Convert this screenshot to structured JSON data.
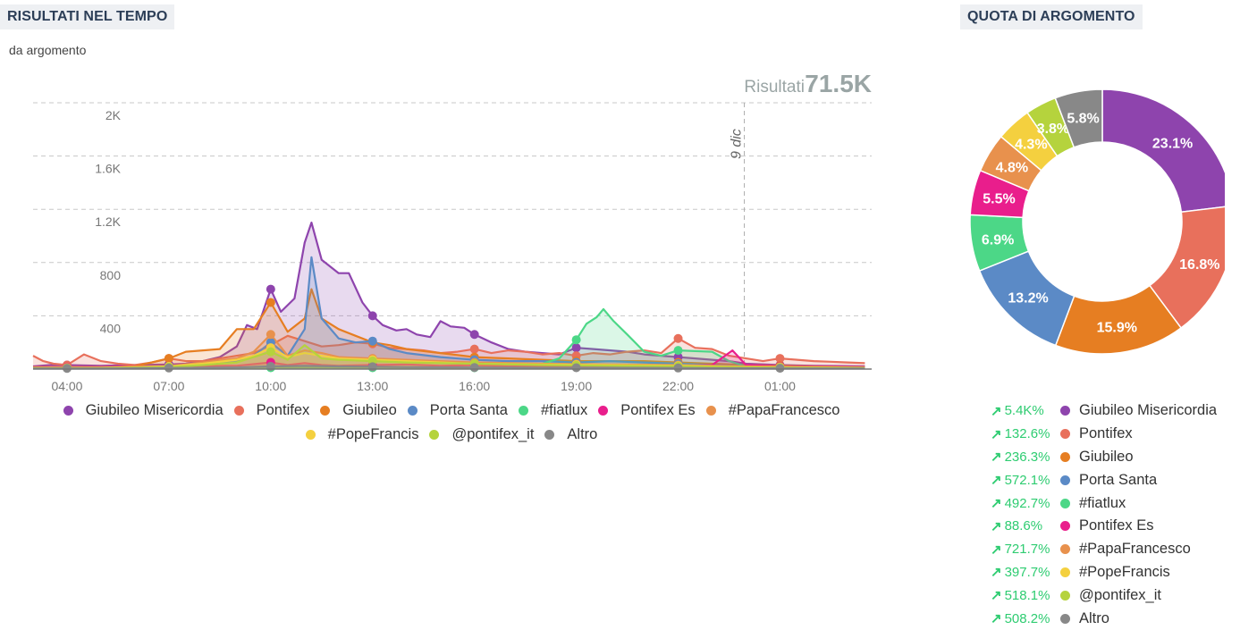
{
  "header": {
    "left_title": "RISULTATI NEL TEMPO",
    "subtitle": "da argomento",
    "right_title": "QUOTA DI ARGOMENTO"
  },
  "chart_data": [
    {
      "type": "area",
      "summary_label": "Risultati",
      "summary_value": "71.5K",
      "y_ticks": [
        "400",
        "800",
        "1.2K",
        "1.6K",
        "2K"
      ],
      "y_tick_values": [
        400,
        800,
        1200,
        1600,
        2000
      ],
      "ylim": [
        0,
        2000
      ],
      "x_ticks": [
        "04:00",
        "07:00",
        "10:00",
        "13:00",
        "16:00",
        "19:00",
        "22:00",
        "01:00"
      ],
      "x_tick_hours": [
        4,
        7,
        10,
        13,
        16,
        19,
        22,
        25
      ],
      "xlim_hours": [
        3,
        27.7
      ],
      "annotation": {
        "text": "9 dic",
        "hour": 23.95
      },
      "grid": true,
      "legend_position": "bottom",
      "series": [
        {
          "name": "Giubileo Misericordia",
          "color": "#8e44ad",
          "x": [
            3.0,
            3.5,
            4,
            5,
            6,
            7,
            7.5,
            8,
            8.5,
            9,
            9.3,
            9.6,
            10,
            10.3,
            10.7,
            11,
            11.2,
            11.5,
            12,
            12.3,
            12.7,
            13,
            13.3,
            13.7,
            14,
            14.3,
            14.7,
            15,
            15.3,
            15.7,
            16,
            16.5,
            17,
            17.5,
            18,
            18.5,
            19,
            19.5,
            20,
            20.5,
            21,
            22,
            23,
            23.5,
            24,
            25,
            26,
            27.5
          ],
          "y": [
            20,
            30,
            30,
            25,
            30,
            35,
            40,
            60,
            90,
            170,
            330,
            300,
            600,
            430,
            530,
            950,
            1100,
            820,
            720,
            720,
            500,
            400,
            330,
            290,
            300,
            260,
            240,
            360,
            320,
            310,
            260,
            200,
            150,
            130,
            120,
            110,
            160,
            150,
            140,
            130,
            110,
            90,
            70,
            60,
            40,
            30,
            25,
            20
          ]
        },
        {
          "name": "Pontifex",
          "color": "#e8705c",
          "x": [
            3.0,
            3.3,
            3.6,
            4,
            4.5,
            5,
            5.5,
            6,
            6.5,
            7,
            7.5,
            8,
            8.5,
            9,
            9.5,
            10,
            10.5,
            11,
            11.5,
            12,
            12.5,
            13,
            13.5,
            14,
            14.5,
            15,
            15.5,
            16,
            16.5,
            17,
            17.5,
            18,
            18.5,
            19,
            19.5,
            20,
            20.5,
            21,
            21.5,
            22,
            22.5,
            23,
            23.5,
            24,
            24.5,
            25,
            25.5,
            26,
            26.5,
            27,
            27.5
          ],
          "y": [
            100,
            60,
            40,
            30,
            110,
            60,
            40,
            30,
            50,
            80,
            60,
            60,
            80,
            100,
            120,
            180,
            250,
            210,
            170,
            180,
            200,
            190,
            160,
            150,
            140,
            120,
            130,
            150,
            120,
            140,
            130,
            110,
            120,
            100,
            120,
            110,
            130,
            140,
            120,
            230,
            160,
            150,
            100,
            80,
            60,
            80,
            70,
            60,
            55,
            50,
            45
          ]
        },
        {
          "name": "Giubileo",
          "color": "#e67e22",
          "x": [
            3.0,
            4,
            5,
            6,
            7,
            7.5,
            8,
            8.5,
            9,
            9.5,
            10,
            10.5,
            11,
            11.2,
            11.5,
            12,
            12.5,
            13,
            13.5,
            14,
            15,
            16,
            17,
            18,
            19,
            20,
            21,
            22,
            23,
            24,
            25,
            26,
            27.5
          ],
          "y": [
            15,
            15,
            15,
            20,
            80,
            130,
            140,
            150,
            300,
            300,
            500,
            280,
            380,
            600,
            380,
            300,
            250,
            200,
            180,
            150,
            120,
            90,
            80,
            70,
            60,
            60,
            60,
            50,
            40,
            30,
            25,
            20,
            15
          ]
        },
        {
          "name": "Porta Santa",
          "color": "#5b8ac6",
          "x": [
            3.0,
            5,
            7,
            8,
            9,
            9.5,
            10,
            10.5,
            11,
            11.2,
            11.5,
            12,
            12.5,
            13,
            13.5,
            14,
            15,
            16,
            17,
            18,
            19,
            20,
            21,
            22,
            23,
            24,
            25,
            27.5
          ],
          "y": [
            10,
            10,
            15,
            30,
            60,
            100,
            200,
            100,
            300,
            840,
            380,
            230,
            200,
            210,
            150,
            120,
            90,
            70,
            60,
            60,
            50,
            60,
            50,
            40,
            30,
            20,
            15,
            10
          ]
        },
        {
          "name": "#fiatlux",
          "color": "#4cd787",
          "x": [
            3.0,
            17,
            18,
            18.5,
            19,
            19.3,
            19.6,
            19.8,
            20.1,
            20.5,
            21,
            21.5,
            22,
            23,
            23.5,
            24,
            27.5
          ],
          "y": [
            10,
            10,
            40,
            80,
            220,
            340,
            390,
            450,
            360,
            260,
            130,
            100,
            140,
            130,
            60,
            20,
            10
          ]
        },
        {
          "name": "Pontifex Es",
          "color": "#e91e8c",
          "x": [
            3.0,
            5,
            7,
            9,
            10,
            10.5,
            11,
            11.5,
            12,
            13,
            14,
            15,
            16,
            17,
            18,
            19,
            20,
            21,
            22,
            23,
            23.6,
            24,
            25,
            27.5
          ],
          "y": [
            15,
            15,
            20,
            25,
            50,
            30,
            45,
            30,
            25,
            30,
            35,
            25,
            30,
            20,
            20,
            20,
            25,
            20,
            25,
            30,
            140,
            30,
            20,
            15
          ]
        },
        {
          "name": "#PapaFrancesco",
          "color": "#e8914d",
          "x": [
            3.0,
            5,
            7,
            8,
            9,
            9.5,
            10,
            10.5,
            11,
            11.5,
            12,
            13,
            14,
            15,
            16,
            18,
            20,
            22,
            24,
            27.5
          ],
          "y": [
            10,
            10,
            20,
            50,
            80,
            130,
            260,
            100,
            140,
            120,
            90,
            80,
            70,
            60,
            50,
            40,
            35,
            30,
            20,
            10
          ]
        },
        {
          "name": "#PopeFrancis",
          "color": "#f4d03f",
          "x": [
            3.0,
            5,
            7,
            8,
            9,
            9.5,
            10,
            10.5,
            11,
            11.5,
            12,
            13,
            14,
            15,
            16,
            18,
            20,
            22,
            24,
            27.5
          ],
          "y": [
            10,
            10,
            20,
            40,
            70,
            100,
            160,
            90,
            120,
            100,
            80,
            70,
            60,
            50,
            40,
            35,
            30,
            25,
            15,
            10
          ]
        },
        {
          "name": "@pontifex_it",
          "color": "#b5d33d",
          "x": [
            3.0,
            5,
            7,
            8,
            9,
            9.5,
            10,
            10.5,
            11,
            11.5,
            12,
            13,
            14,
            15,
            16,
            18,
            20,
            22,
            24,
            27.5
          ],
          "y": [
            8,
            8,
            15,
            30,
            50,
            90,
            130,
            70,
            180,
            80,
            70,
            60,
            50,
            45,
            40,
            30,
            25,
            20,
            12,
            8
          ]
        },
        {
          "name": "Altro",
          "color": "#888888",
          "x": [
            3.0,
            5,
            7,
            9,
            10,
            11,
            12,
            13,
            14,
            16,
            18,
            20,
            22,
            24,
            27.5
          ],
          "y": [
            5,
            5,
            8,
            12,
            20,
            25,
            20,
            18,
            15,
            12,
            10,
            10,
            8,
            6,
            5
          ]
        }
      ]
    },
    {
      "type": "pie",
      "variant": "donut",
      "start": "top",
      "slices": [
        {
          "name": "Giubileo Misericordia",
          "value": 23.1,
          "label": "23.1%",
          "color": "#8e44ad"
        },
        {
          "name": "Pontifex",
          "value": 16.8,
          "label": "16.8%",
          "color": "#e8705c"
        },
        {
          "name": "Giubileo",
          "value": 15.9,
          "label": "15.9%",
          "color": "#e67e22"
        },
        {
          "name": "Porta Santa",
          "value": 13.2,
          "label": "13.2%",
          "color": "#5b8ac6"
        },
        {
          "name": "#fiatlux",
          "value": 6.9,
          "label": "6.9%",
          "color": "#4cd787"
        },
        {
          "name": "Pontifex Es",
          "value": 5.5,
          "label": "5.5%",
          "color": "#e91e8c"
        },
        {
          "name": "#PapaFrancesco",
          "value": 4.8,
          "label": "4.8%",
          "color": "#e8914d"
        },
        {
          "name": "#PopeFrancis",
          "value": 4.3,
          "label": "4.3%",
          "color": "#f4d03f"
        },
        {
          "name": "@pontifex_it",
          "value": 3.8,
          "label": "3.8%",
          "color": "#b5d33d"
        },
        {
          "name": "Altro",
          "value": 5.8,
          "label": "5.8%",
          "color": "#888888"
        }
      ]
    }
  ],
  "legend_right": {
    "arrow": "↗",
    "items": [
      {
        "change": "5.4K%",
        "name": "Giubileo Misericordia",
        "color": "#8e44ad"
      },
      {
        "change": "132.6%",
        "name": "Pontifex",
        "color": "#e8705c"
      },
      {
        "change": "236.3%",
        "name": "Giubileo",
        "color": "#e67e22"
      },
      {
        "change": "572.1%",
        "name": "Porta Santa",
        "color": "#5b8ac6"
      },
      {
        "change": "492.7%",
        "name": "#fiatlux",
        "color": "#4cd787"
      },
      {
        "change": "88.6%",
        "name": "Pontifex Es",
        "color": "#e91e8c"
      },
      {
        "change": "721.7%",
        "name": "#PapaFrancesco",
        "color": "#e8914d"
      },
      {
        "change": "397.7%",
        "name": "#PopeFrancis",
        "color": "#f4d03f"
      },
      {
        "change": "518.1%",
        "name": "@pontifex_it",
        "color": "#b5d33d"
      },
      {
        "change": "508.2%",
        "name": "Altro",
        "color": "#888888"
      }
    ]
  }
}
